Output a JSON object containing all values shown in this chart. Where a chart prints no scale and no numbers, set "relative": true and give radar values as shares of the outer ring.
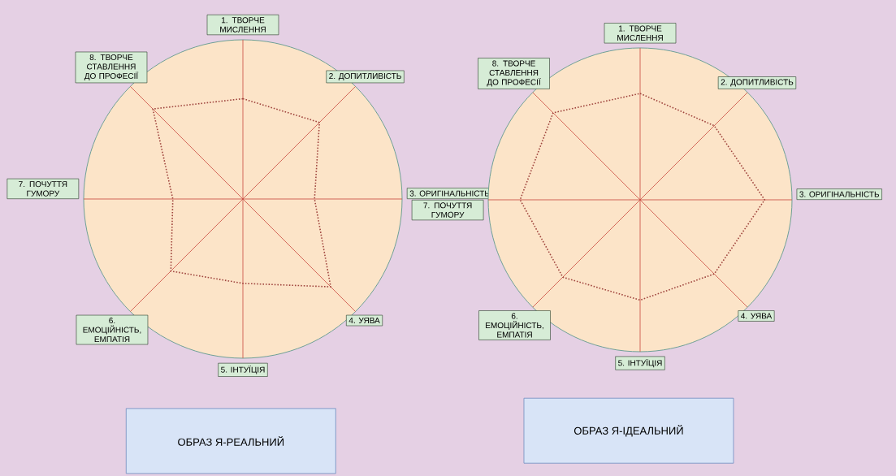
{
  "chart_data": [
    {
      "type": "radar",
      "title": "ОБРАЗ Я-РЕАЛЬНИЙ",
      "relative": true,
      "grid": true,
      "line_style": "dotted",
      "marker": "none",
      "categories": [
        "1. ТВОРЧЕ МИСЛЕННЯ",
        "2. ДОПИТЛИВІСТЬ",
        "3. ОРИГІНАЛЬНІСТЬ",
        "4. УЯВА",
        "5. ІНТУЇЦІЯ",
        "6. ЕМОЦІЙНІСТЬ, ЕМПАТІЯ",
        "7. ПОЧУТТЯ ГУМОРУ",
        "8. ТВОРЧЕ СТАВЛЕННЯ ДО ПРОФЕСІЇ"
      ],
      "series": [
        {
          "color": "#a0463f",
          "values": [
            0.63,
            0.68,
            0.45,
            0.78,
            0.53,
            0.64,
            0.44,
            0.8
          ]
        }
      ]
    },
    {
      "type": "radar",
      "title": "ОБРАЗ Я-ІДЕАЛЬНИЙ",
      "relative": true,
      "grid": true,
      "line_style": "dotted",
      "marker": "none",
      "categories": [
        "1. ТВОРЧЕ МИСЛЕННЯ",
        "2. ДОПИТЛИВІСТЬ",
        "3. ОРИГІНАЛЬНІСТЬ",
        "4. УЯВА",
        "5. ІНТУЇЦІЯ",
        "6. ЕМОЦІЙНІСТЬ, ЕМПАТІЯ",
        "7. ПОЧУТТЯ ГУМОРУ",
        "8. ТВОРЧЕ СТАВЛЕННЯ ДО ПРОФЕСІЇ"
      ],
      "series": [
        {
          "color": "#a0463f",
          "values": [
            0.7,
            0.69,
            0.82,
            0.69,
            0.66,
            0.72,
            0.79,
            0.81
          ]
        }
      ]
    }
  ]
}
